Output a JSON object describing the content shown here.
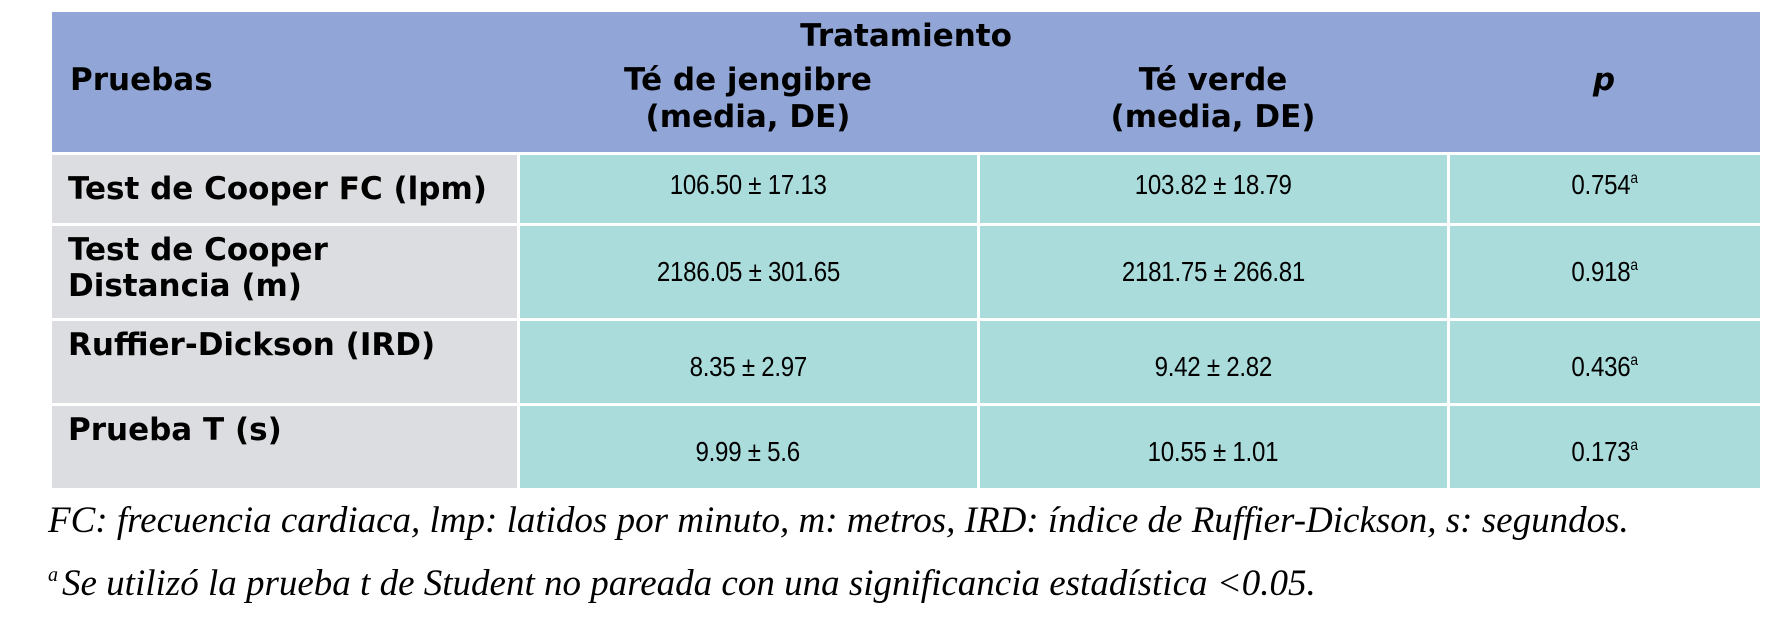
{
  "header": {
    "group_label": "Tratamiento",
    "col_tests": "Pruebas",
    "col_ginger_line1": "Té de jengibre",
    "col_ginger_line2": "(media, DE)",
    "col_green_line1": "Té verde",
    "col_green_line2": "(media, DE)",
    "col_p": "p"
  },
  "rows": [
    {
      "label_line1": "Test de Cooper  FC (lpm)",
      "label_line2": "",
      "ginger": "106.50 ± 17.13",
      "green": "103.82 ± 18.79",
      "p": "0.754",
      "p_sup": "a"
    },
    {
      "label_line1": "Test de Cooper",
      "label_line2": "Distancia (m)",
      "ginger": "2186.05 ± 301.65",
      "green": "2181.75 ± 266.81",
      "p": "0.918",
      "p_sup": "a"
    },
    {
      "label_line1": "Ruffier-Dickson (IRD)",
      "label_line2": "",
      "ginger": "8.35 ± 2.97",
      "green": "9.42 ± 2.82",
      "p": "0.436",
      "p_sup": "a"
    },
    {
      "label_line1": "Prueba T  (s)",
      "label_line2": "",
      "ginger": "9.99 ± 5.6",
      "green": "10.55 ± 1.01",
      "p": "0.173",
      "p_sup": "a"
    }
  ],
  "notes": {
    "abbreviations": "FC: frecuencia cardiaca, lmp: latidos por minuto, m: metros, IRD: índice de Ruffier-Dickson, s: segundos.",
    "footnote_mark": "a",
    "footnote_text": "Se utilizó la prueba t de Student no pareada con una significancia estadística <0.05."
  },
  "colors": {
    "header_bg": "#91a6d6",
    "label_bg": "#dcdde0",
    "value_bg": "#abdcdc"
  }
}
